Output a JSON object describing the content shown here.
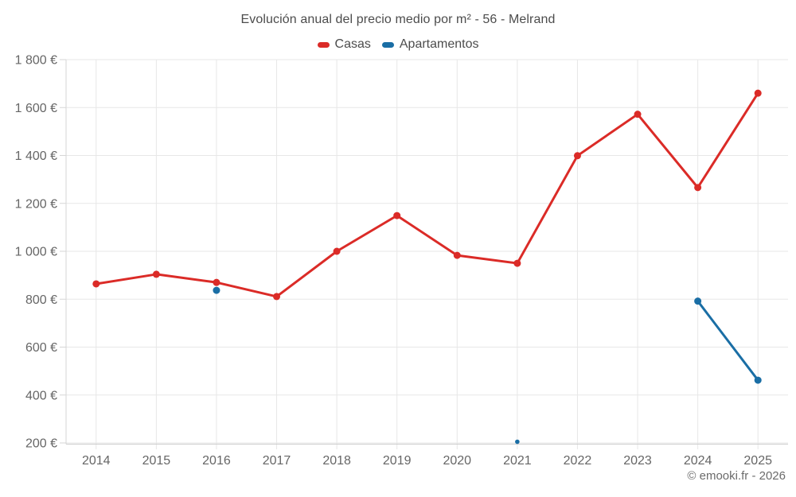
{
  "page": {
    "title": "Evolución anual del precio medio por m² - 56 - Melrand",
    "footer_credit": "© emooki.fr - 2026"
  },
  "chart_data": {
    "type": "line",
    "title": "Evolución anual del precio medio por m² - 56 - Melrand",
    "categories": [
      "2014",
      "2015",
      "2016",
      "2017",
      "2018",
      "2019",
      "2020",
      "2021",
      "2022",
      "2023",
      "2024",
      "2025"
    ],
    "series": [
      {
        "name": "Casas",
        "color": "#db2b27",
        "values": [
          864,
          904,
          870,
          811,
          1000,
          1149,
          983,
          950,
          1399,
          1572,
          1266,
          1660
        ],
        "marker_radius": 4.5,
        "marker_radii": null
      },
      {
        "name": "Apartamentos",
        "color": "#1a6ea5",
        "values": [
          null,
          null,
          837,
          null,
          null,
          null,
          null,
          205,
          null,
          null,
          792,
          462
        ],
        "marker_radius": 4.5,
        "marker_radii": [
          null,
          null,
          4.5,
          null,
          null,
          null,
          null,
          2.8,
          null,
          null,
          4.5,
          4.5
        ]
      }
    ],
    "ylim": [
      200,
      1800
    ],
    "y_ticks": [
      200,
      400,
      600,
      800,
      1000,
      1200,
      1400,
      1600,
      1800
    ],
    "y_tick_labels": [
      "200 €",
      "400 €",
      "600 €",
      "800 €",
      "1 000 €",
      "1 200 €",
      "1 400 €",
      "1 600 €",
      "1 800 €"
    ],
    "currency_suffix": "€",
    "grid": true,
    "legend_position": "top"
  }
}
